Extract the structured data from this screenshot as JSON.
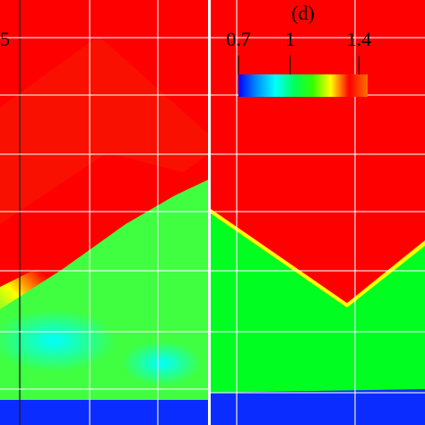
{
  "chart_data": {
    "type": "heatmap",
    "title": "(d)",
    "fragment_label": "5",
    "colorbar": {
      "clim": [
        0.7,
        1.45
      ],
      "ticks": [
        0.7,
        1,
        1.4
      ],
      "colormap": [
        "#0000ff",
        "#0090ff",
        "#00ffff",
        "#00ff60",
        "#30ff00",
        "#ffff00",
        "#ff0000",
        "#ff7000"
      ]
    }
  }
}
